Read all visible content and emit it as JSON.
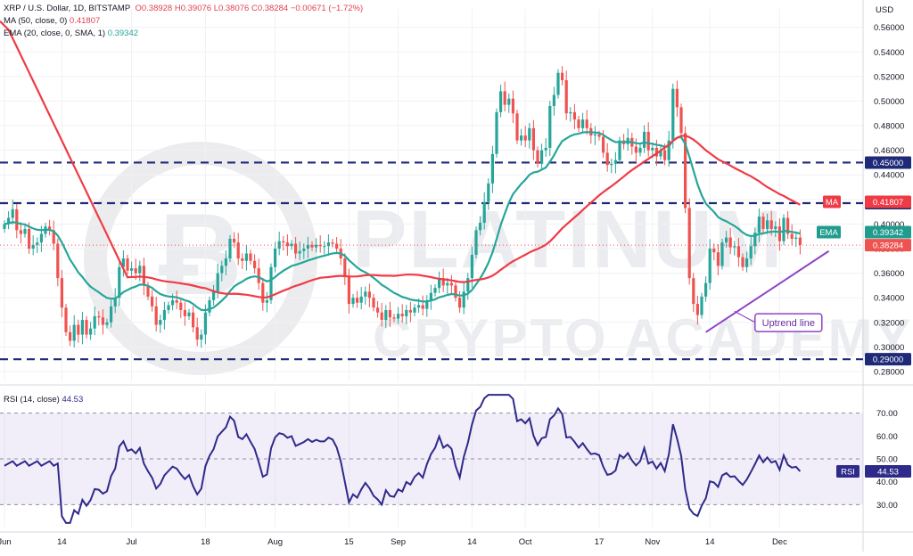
{
  "header": {
    "symbol_line": "XRP / U.S. Dollar, 1D, BITSTAMP",
    "ohlc": {
      "o": "O0.38928",
      "h": "H0.39076",
      "l": "L0.38076",
      "c": "C0.38284",
      "chg": "−0.00671 (−1.72%)"
    },
    "ma_line": "MA (50, close, 0)",
    "ma_value": "0.41807",
    "ema_line": "EMA (20, close, 0, SMA, 1)",
    "ema_value": "0.39342",
    "currency": "USD"
  },
  "watermark": {
    "line1": "PLATINUM",
    "line2": "CRYPTO ACADEMY"
  },
  "colors": {
    "up": "#26a69a",
    "down": "#ef5350",
    "ema": "#26a69a",
    "ma": "#ef3b46",
    "rsi": "#2e2a8a",
    "trend": "#8e44c6",
    "level": "#1e2a78"
  },
  "chart_data": [
    {
      "type": "candlestick",
      "xticks": [
        "Jun",
        "14",
        "Jul",
        "18",
        "Aug",
        "15",
        "Sep",
        "14",
        "Oct",
        "17",
        "Nov",
        "14",
        "Dec"
      ],
      "yticks": [
        "0.56000",
        "0.54000",
        "0.52000",
        "0.50000",
        "0.48000",
        "0.46000",
        "0.44000",
        "0.42000",
        "0.40000",
        "0.38000",
        "0.36000",
        "0.34000",
        "0.32000",
        "0.30000",
        "0.28000"
      ],
      "ylim": [
        0.272,
        0.575
      ],
      "levels": [
        0.45,
        0.417,
        0.29
      ],
      "level_labels": [
        "0.45000",
        "0.41700",
        "0.29000"
      ],
      "last_price": 0.38284,
      "last_price_label": "0.38284",
      "ma_label": "MA",
      "ma_value": 0.41807,
      "ma_value_label": "0.41807",
      "ema_label": "EMA",
      "ema_value": 0.39342,
      "ema_value_label": "0.39342",
      "annotation": "Uptrend line",
      "closes": [
        0.4,
        0.405,
        0.412,
        0.395,
        0.392,
        0.396,
        0.38,
        0.383,
        0.385,
        0.392,
        0.398,
        0.395,
        0.384,
        0.356,
        0.332,
        0.312,
        0.305,
        0.318,
        0.31,
        0.322,
        0.31,
        0.315,
        0.325,
        0.324,
        0.318,
        0.32,
        0.333,
        0.34,
        0.365,
        0.372,
        0.362,
        0.364,
        0.36,
        0.366,
        0.35,
        0.341,
        0.333,
        0.318,
        0.322,
        0.33,
        0.334,
        0.338,
        0.336,
        0.33,
        0.325,
        0.328,
        0.316,
        0.306,
        0.31,
        0.328,
        0.338,
        0.345,
        0.36,
        0.366,
        0.372,
        0.388,
        0.385,
        0.372,
        0.37,
        0.376,
        0.37,
        0.364,
        0.352,
        0.336,
        0.338,
        0.365,
        0.38,
        0.386,
        0.385,
        0.382,
        0.384,
        0.376,
        0.378,
        0.38,
        0.383,
        0.381,
        0.383,
        0.382,
        0.382,
        0.385,
        0.384,
        0.38,
        0.372,
        0.357,
        0.335,
        0.34,
        0.336,
        0.341,
        0.345,
        0.34,
        0.332,
        0.328,
        0.322,
        0.33,
        0.324,
        0.323,
        0.327,
        0.325,
        0.33,
        0.328,
        0.332,
        0.334,
        0.331,
        0.338,
        0.344,
        0.348,
        0.356,
        0.35,
        0.352,
        0.35,
        0.34,
        0.332,
        0.345,
        0.356,
        0.375,
        0.395,
        0.401,
        0.418,
        0.433,
        0.457,
        0.491,
        0.508,
        0.497,
        0.502,
        0.49,
        0.468,
        0.472,
        0.468,
        0.478,
        0.46,
        0.449,
        0.46,
        0.462,
        0.496,
        0.505,
        0.523,
        0.517,
        0.49,
        0.491,
        0.485,
        0.478,
        0.485,
        0.478,
        0.472,
        0.473,
        0.471,
        0.458,
        0.448,
        0.449,
        0.452,
        0.468,
        0.465,
        0.47,
        0.463,
        0.458,
        0.462,
        0.475,
        0.46,
        0.462,
        0.455,
        0.46,
        0.452,
        0.468,
        0.51,
        0.495,
        0.474,
        0.413,
        0.356,
        0.335,
        0.326,
        0.341,
        0.352,
        0.38,
        0.377,
        0.366,
        0.385,
        0.389,
        0.381,
        0.382,
        0.373,
        0.365,
        0.372,
        0.382,
        0.393,
        0.406,
        0.396,
        0.403,
        0.396,
        0.398,
        0.386,
        0.405,
        0.392,
        0.388,
        0.389,
        0.383
      ],
      "rsi": {
        "title": "RSI (14, close)",
        "value": 44.53,
        "value_label": "44.53",
        "name_label": "RSI",
        "ylim": [
          20,
          80
        ],
        "bands": [
          70,
          30
        ],
        "yticks": [
          "70.00",
          "60.00",
          "50.00",
          "40.00",
          "30.00"
        ]
      }
    }
  ]
}
